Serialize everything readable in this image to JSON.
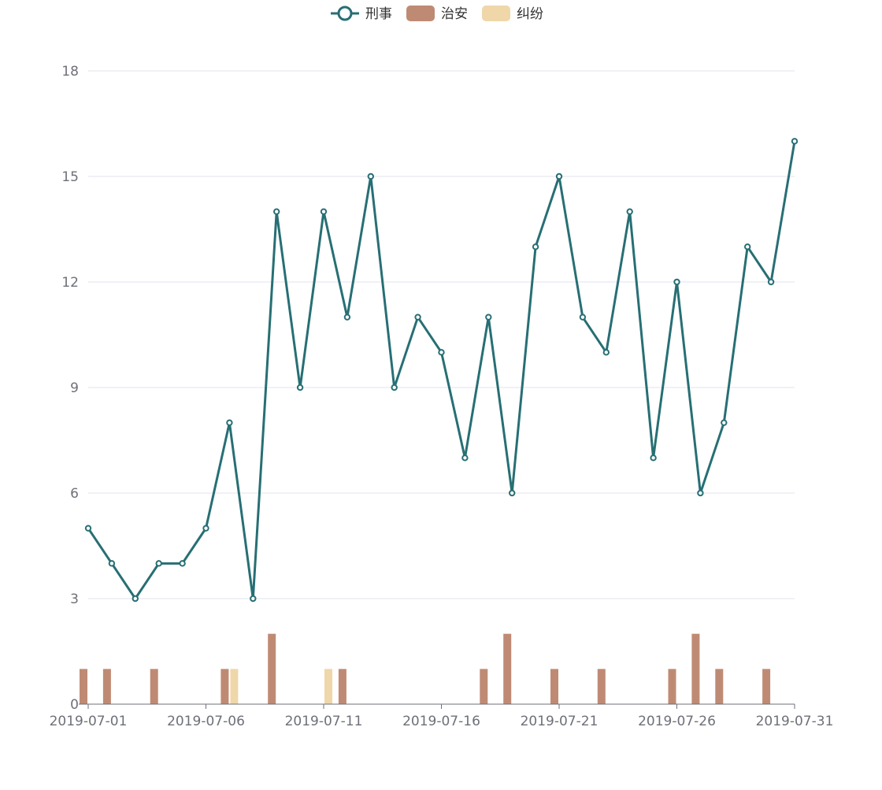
{
  "chart_data": {
    "type": "line",
    "title": "",
    "xlabel": "",
    "ylabel": "",
    "ylim": [
      0,
      18
    ],
    "yticks": [
      0,
      3,
      6,
      9,
      12,
      15,
      18
    ],
    "grid": true,
    "legend_position": "top-center",
    "x": [
      "2019-07-01",
      "2019-07-02",
      "2019-07-03",
      "2019-07-04",
      "2019-07-05",
      "2019-07-06",
      "2019-07-07",
      "2019-07-08",
      "2019-07-09",
      "2019-07-10",
      "2019-07-11",
      "2019-07-12",
      "2019-07-13",
      "2019-07-14",
      "2019-07-15",
      "2019-07-16",
      "2019-07-17",
      "2019-07-18",
      "2019-07-19",
      "2019-07-20",
      "2019-07-21",
      "2019-07-22",
      "2019-07-23",
      "2019-07-24",
      "2019-07-25",
      "2019-07-26",
      "2019-07-27",
      "2019-07-28",
      "2019-07-29",
      "2019-07-30",
      "2019-07-31"
    ],
    "xtick_labels": [
      "2019-07-01",
      "2019-07-06",
      "2019-07-11",
      "2019-07-16",
      "2019-07-21",
      "2019-07-26",
      "2019-07-31"
    ],
    "series": [
      {
        "name": "刑事",
        "type": "line",
        "color": "#276f74",
        "values": [
          5,
          4,
          3,
          4,
          4,
          5,
          8,
          3,
          14,
          9,
          14,
          11,
          15,
          9,
          11,
          10,
          7,
          11,
          6,
          13,
          15,
          11,
          10,
          14,
          7,
          12,
          6,
          8,
          13,
          12,
          16
        ]
      },
      {
        "name": "治安",
        "type": "bar",
        "color": "#bf8a74",
        "values": [
          1,
          1,
          0,
          1,
          0,
          0,
          1,
          0,
          2,
          0,
          0,
          1,
          0,
          0,
          0,
          0,
          0,
          1,
          2,
          0,
          1,
          0,
          1,
          0,
          0,
          1,
          2,
          1,
          0,
          1,
          0
        ]
      },
      {
        "name": "纠纷",
        "type": "bar",
        "color": "#efd7a9",
        "values": [
          0,
          0,
          0,
          0,
          0,
          0,
          1,
          0,
          0,
          0,
          1,
          0,
          0,
          0,
          0,
          0,
          0,
          0,
          0,
          0,
          0,
          0,
          0,
          0,
          0,
          0,
          0,
          0,
          0,
          0,
          0
        ]
      }
    ]
  }
}
